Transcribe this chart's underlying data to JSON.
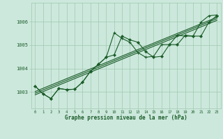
{
  "title": "Graphe pression niveau de la mer (hPa)",
  "bg_color": "#cce8dc",
  "grid_color": "#a0c8b0",
  "line_color": "#1a5c28",
  "xlim": [
    -0.5,
    23.5
  ],
  "ylim": [
    1002.3,
    1006.8
  ],
  "yticks": [
    1003,
    1004,
    1005,
    1006
  ],
  "xticks": [
    0,
    1,
    2,
    3,
    4,
    5,
    6,
    7,
    8,
    9,
    10,
    11,
    12,
    13,
    14,
    15,
    16,
    17,
    18,
    19,
    20,
    21,
    22,
    23
  ],
  "series_diamond": [
    1003.25,
    1002.92,
    1002.72,
    1003.15,
    1003.1,
    1003.12,
    1003.42,
    1003.88,
    1004.18,
    1004.48,
    1004.58,
    1005.38,
    1005.22,
    1005.12,
    1004.72,
    1004.48,
    1004.52,
    1005.02,
    1005.02,
    1005.42,
    1005.38,
    1005.38,
    1005.98,
    1006.25
  ],
  "series_plus": [
    1003.25,
    1002.92,
    1002.72,
    1003.15,
    1003.1,
    1003.12,
    1003.42,
    1003.88,
    1004.18,
    1004.48,
    1005.52,
    1005.28,
    1005.12,
    1004.68,
    1004.48,
    1004.52,
    1005.02,
    1005.02,
    1005.42,
    1005.38,
    1005.38,
    1005.98,
    1006.25,
    1006.28
  ],
  "trend_lines": [
    [
      1002.88,
      1006.05
    ],
    [
      1002.95,
      1006.12
    ],
    [
      1003.02,
      1006.18
    ]
  ]
}
